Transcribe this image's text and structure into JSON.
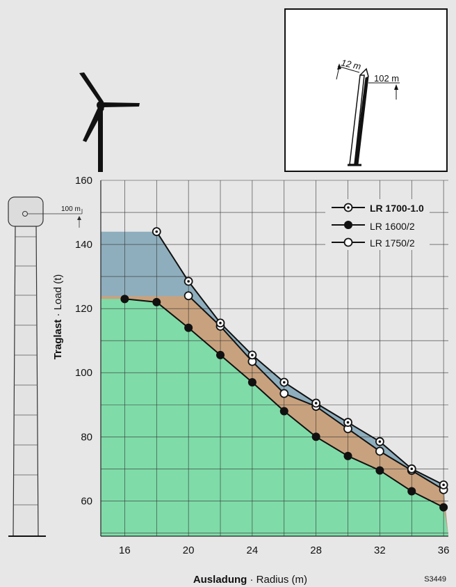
{
  "figure_id": "S3449",
  "inset": {
    "label_left": "12 m",
    "label_right": "102 m"
  },
  "tower_label": "100 m",
  "colors": {
    "background": "#e7e7e7",
    "green": "#7fdba8",
    "tan": "#c8a27e",
    "blue": "#8eaebd",
    "line": "#111111"
  },
  "chart_data": {
    "type": "line",
    "xlabel_bold": "Ausladung",
    "xlabel_rest": " · Radius (m)",
    "ylabel_bold": "Traglast",
    "ylabel_rest": " · Load (t)",
    "xlim": [
      14.5,
      36.3
    ],
    "ylim": [
      49,
      160
    ],
    "xticks": [
      16,
      20,
      24,
      28,
      32,
      36
    ],
    "yticks": [
      60,
      80,
      100,
      120,
      140,
      160
    ],
    "grid": true,
    "legend_position": "top-right",
    "series": [
      {
        "name": "LR 1700-1.0",
        "marker": "ring-dot",
        "x": [
          18,
          20,
          22,
          24,
          26,
          28,
          30,
          32,
          34,
          36
        ],
        "y": [
          144,
          128.5,
          115.5,
          105.5,
          97,
          90.5,
          84.5,
          78.5,
          70,
          65
        ]
      },
      {
        "name": "LR 1600/2",
        "marker": "filled",
        "x": [
          16,
          18,
          20,
          22,
          24,
          26,
          28,
          30,
          32,
          34,
          36
        ],
        "y": [
          123,
          122,
          114,
          105.5,
          97,
          88,
          80,
          74,
          69.5,
          63,
          58
        ]
      },
      {
        "name": "LR 1750/2",
        "marker": "open",
        "x": [
          20,
          22,
          24,
          26,
          28,
          30,
          32,
          34,
          36
        ],
        "y": [
          124,
          114.5,
          103.5,
          93.5,
          89.5,
          82.5,
          75.5,
          69.5,
          63.5
        ]
      }
    ]
  }
}
